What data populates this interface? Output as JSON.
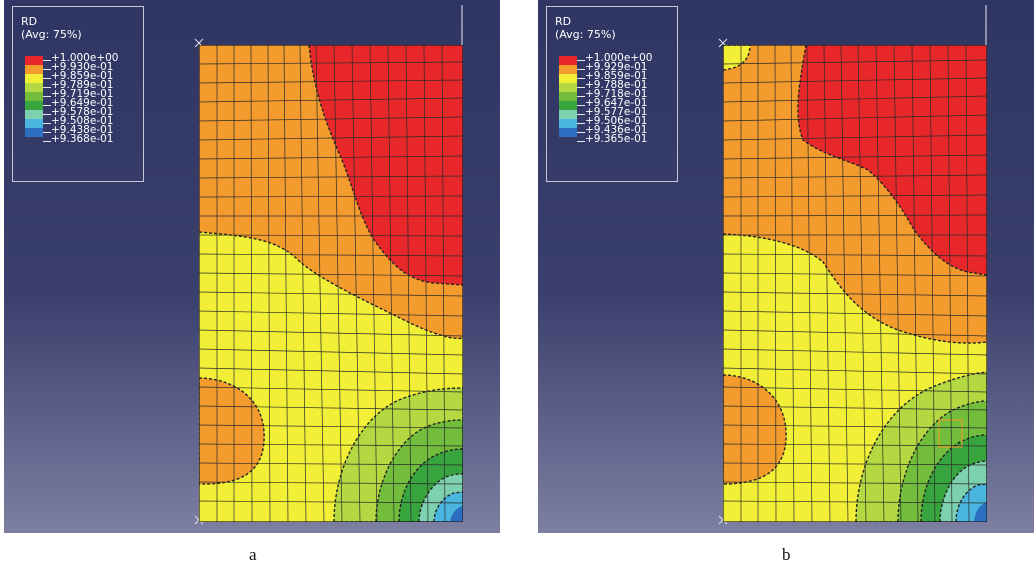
{
  "panels": [
    {
      "legend": {
        "variable": "RD",
        "averaging": "(Avg: 75%)",
        "levels": [
          "+1.000e+00",
          "+9.930e-01",
          "+9.859e-01",
          "+9.789e-01",
          "+9.719e-01",
          "+9.649e-01",
          "+9.578e-01",
          "+9.508e-01",
          "+9.438e-01",
          "+9.368e-01"
        ]
      },
      "caption": "a"
    },
    {
      "legend": {
        "variable": "RD",
        "averaging": "(Avg: 75%)",
        "levels": [
          "+1.000e+00",
          "+9.929e-01",
          "+9.859e-01",
          "+9.788e-01",
          "+9.718e-01",
          "+9.647e-01",
          "+9.577e-01",
          "+9.506e-01",
          "+9.436e-01",
          "+9.365e-01"
        ]
      },
      "caption": "b"
    }
  ],
  "colors": {
    "background_top": "#2f3663",
    "background_bottom": "#7d7fa2",
    "contour_bands": [
      "#e8272a",
      "#f39b2c",
      "#f1f036",
      "#b3d841",
      "#72bd3b",
      "#38a43e",
      "#7dd0b0",
      "#4ab5df",
      "#2c6fc1"
    ]
  }
}
